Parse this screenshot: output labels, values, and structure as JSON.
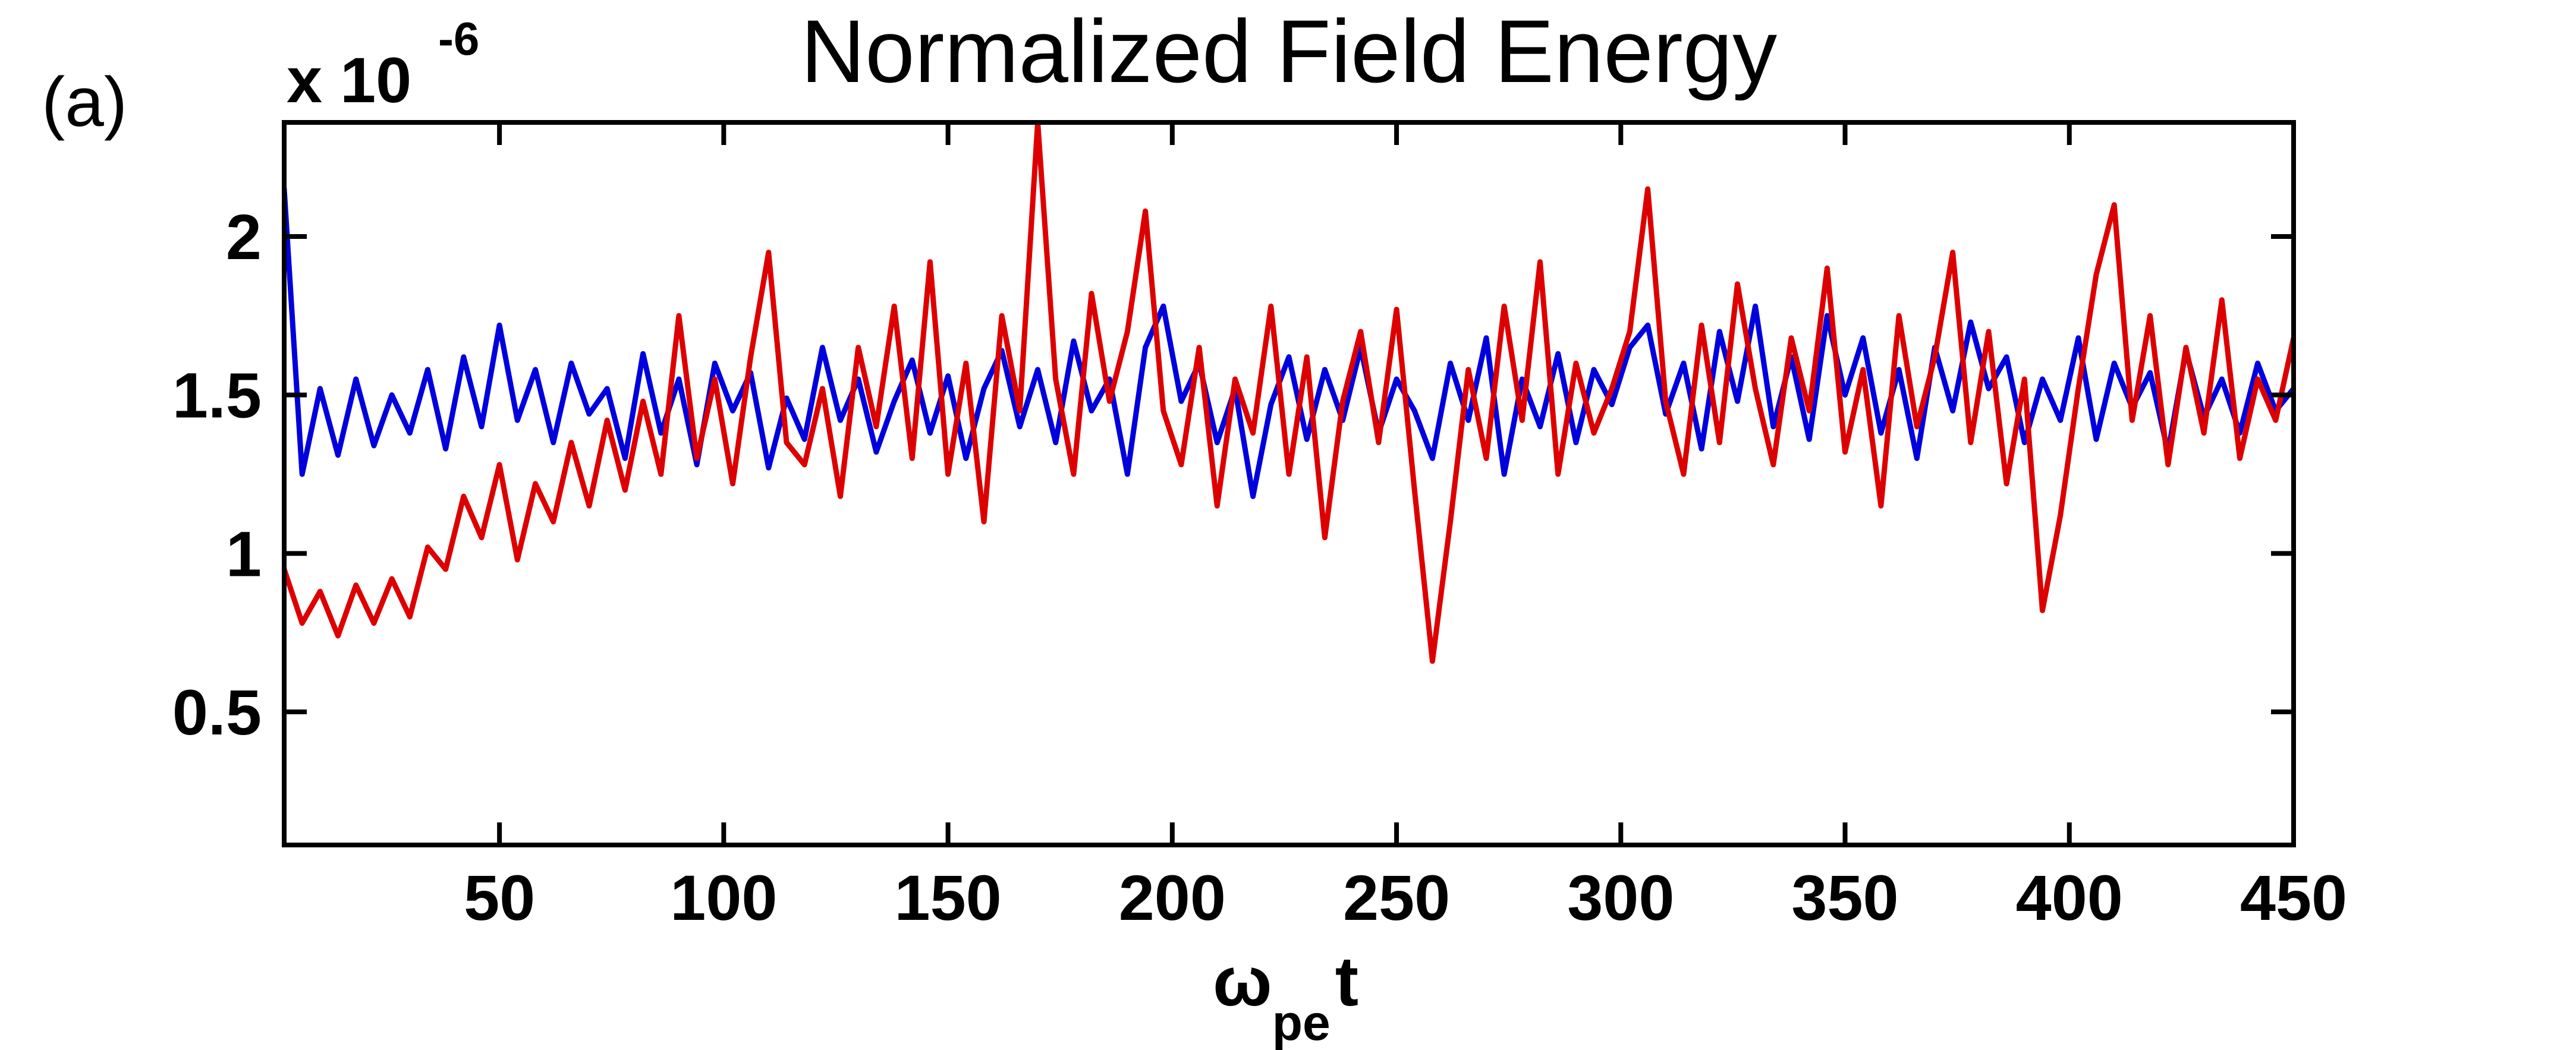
{
  "figure": {
    "panel_label": "(a)",
    "background_color": "#ffffff",
    "axis_color": "#000000"
  },
  "chart_data": {
    "type": "line",
    "title": "Normalized Field Energy",
    "xlabel": {
      "base": "ω",
      "subscript": "pe",
      "suffix": "t"
    },
    "ylabel": "",
    "y_multiplier": {
      "base": "x 10",
      "exponent": "-6"
    },
    "xlim": [
      2,
      450
    ],
    "ylim": [
      0.08,
      2.36
    ],
    "x_ticks": [
      50,
      100,
      150,
      200,
      250,
      300,
      350,
      400,
      450
    ],
    "x_tick_labels": [
      "50",
      "100",
      "150",
      "200",
      "250",
      "300",
      "350",
      "400",
      "450"
    ],
    "y_ticks": [
      0.5,
      1.0,
      1.5,
      2.0
    ],
    "y_tick_labels": [
      "0.5",
      "1",
      "1.5",
      "2"
    ],
    "grid": false,
    "legend": "none",
    "box": true,
    "x": {
      "start": 2,
      "step": 4
    },
    "series": [
      {
        "name": "blue-field-energy",
        "color": "#0000dd",
        "line_width": 9,
        "values": [
          2.15,
          1.25,
          1.52,
          1.31,
          1.55,
          1.34,
          1.5,
          1.38,
          1.58,
          1.33,
          1.62,
          1.4,
          1.72,
          1.42,
          1.58,
          1.35,
          1.6,
          1.44,
          1.52,
          1.3,
          1.63,
          1.38,
          1.55,
          1.28,
          1.6,
          1.45,
          1.57,
          1.27,
          1.49,
          1.36,
          1.65,
          1.42,
          1.55,
          1.32,
          1.48,
          1.61,
          1.38,
          1.56,
          1.3,
          1.52,
          1.64,
          1.4,
          1.58,
          1.35,
          1.67,
          1.45,
          1.55,
          1.25,
          1.65,
          1.78,
          1.48,
          1.6,
          1.35,
          1.52,
          1.18,
          1.47,
          1.62,
          1.36,
          1.58,
          1.42,
          1.65,
          1.38,
          1.55,
          1.45,
          1.3,
          1.6,
          1.42,
          1.68,
          1.25,
          1.55,
          1.4,
          1.63,
          1.35,
          1.58,
          1.47,
          1.65,
          1.72,
          1.44,
          1.6,
          1.33,
          1.7,
          1.48,
          1.78,
          1.4,
          1.62,
          1.36,
          1.75,
          1.5,
          1.68,
          1.38,
          1.58,
          1.3,
          1.65,
          1.45,
          1.73,
          1.52,
          1.62,
          1.35,
          1.55,
          1.42,
          1.68,
          1.36,
          1.6,
          1.46,
          1.57,
          1.32,
          1.64,
          1.43,
          1.55,
          1.38,
          1.6,
          1.45,
          1.52
        ]
      },
      {
        "name": "red-field-energy",
        "color": "#dd0000",
        "line_width": 9,
        "values": [
          0.95,
          0.78,
          0.88,
          0.74,
          0.9,
          0.78,
          0.92,
          0.8,
          1.02,
          0.95,
          1.18,
          1.05,
          1.28,
          0.98,
          1.22,
          1.1,
          1.35,
          1.15,
          1.42,
          1.2,
          1.48,
          1.25,
          1.75,
          1.3,
          1.55,
          1.22,
          1.62,
          1.95,
          1.35,
          1.28,
          1.52,
          1.18,
          1.65,
          1.4,
          1.78,
          1.3,
          1.92,
          1.25,
          1.6,
          1.1,
          1.75,
          1.45,
          2.36,
          1.55,
          1.25,
          1.82,
          1.48,
          1.7,
          2.08,
          1.45,
          1.28,
          1.65,
          1.15,
          1.55,
          1.38,
          1.78,
          1.25,
          1.62,
          1.05,
          1.48,
          1.7,
          1.35,
          1.77,
          1.2,
          0.66,
          1.1,
          1.58,
          1.3,
          1.78,
          1.42,
          1.92,
          1.25,
          1.6,
          1.38,
          1.52,
          1.7,
          2.15,
          1.48,
          1.25,
          1.72,
          1.35,
          1.85,
          1.52,
          1.28,
          1.68,
          1.45,
          1.9,
          1.32,
          1.58,
          1.15,
          1.75,
          1.4,
          1.62,
          1.95,
          1.35,
          1.7,
          1.22,
          1.55,
          0.82,
          1.12,
          1.52,
          1.88,
          2.1,
          1.42,
          1.75,
          1.28,
          1.65,
          1.38,
          1.8,
          1.3,
          1.55,
          1.42,
          1.68
        ]
      }
    ]
  }
}
